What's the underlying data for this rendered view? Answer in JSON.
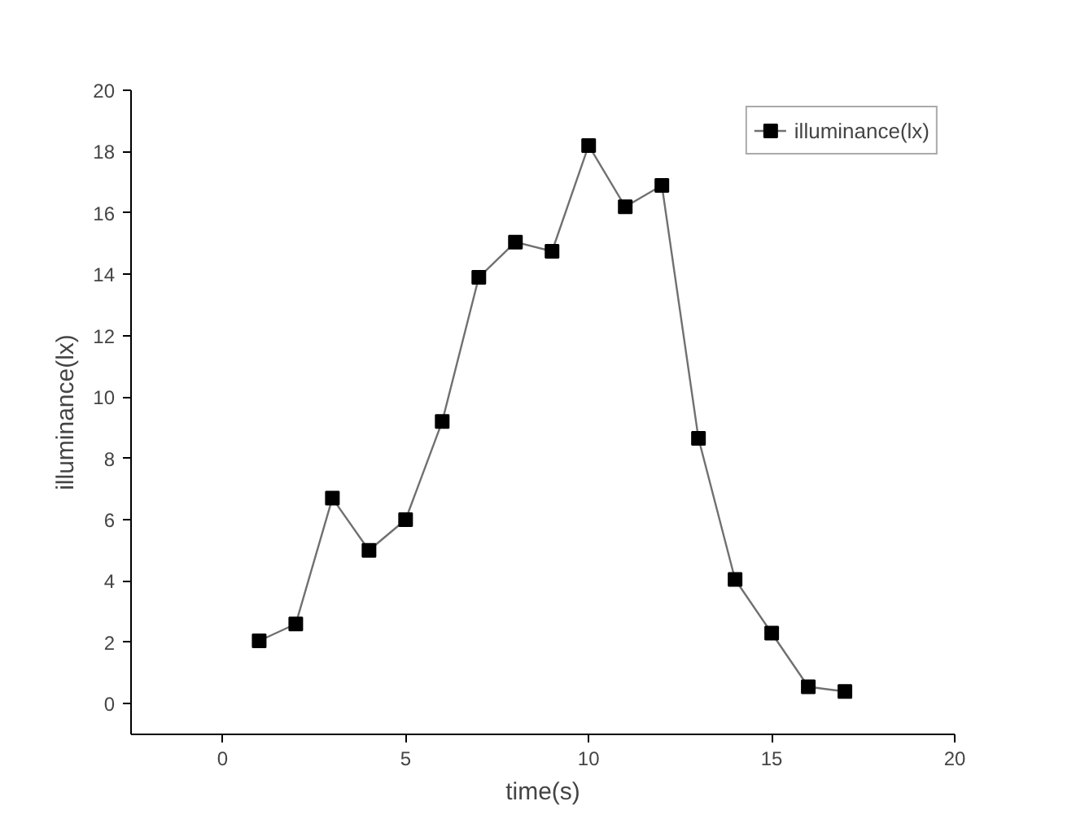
{
  "chart_data": {
    "type": "line",
    "xlabel": "time(s)",
    "ylabel": "illuminance(lx)",
    "x": [
      1,
      2,
      3,
      4,
      5,
      6,
      7,
      8,
      9,
      10,
      11,
      12,
      13,
      14,
      15,
      16,
      17
    ],
    "series": [
      {
        "name": "illuminance(lx)",
        "color": "#000000",
        "values": [
          2.05,
          2.6,
          6.7,
          5.0,
          6.0,
          9.2,
          13.9,
          15.05,
          14.75,
          18.2,
          16.2,
          16.9,
          8.65,
          4.05,
          2.3,
          0.55,
          0.4
        ]
      }
    ],
    "xlim": [
      -2.5,
      20
    ],
    "ylim": [
      -1,
      20
    ],
    "xticks": [
      0,
      5,
      10,
      15,
      20
    ],
    "yticks": [
      0,
      2,
      4,
      6,
      8,
      10,
      12,
      14,
      16,
      18,
      20
    ],
    "marker": "square",
    "line_style": "solid",
    "grid": false,
    "legend": "top right"
  }
}
